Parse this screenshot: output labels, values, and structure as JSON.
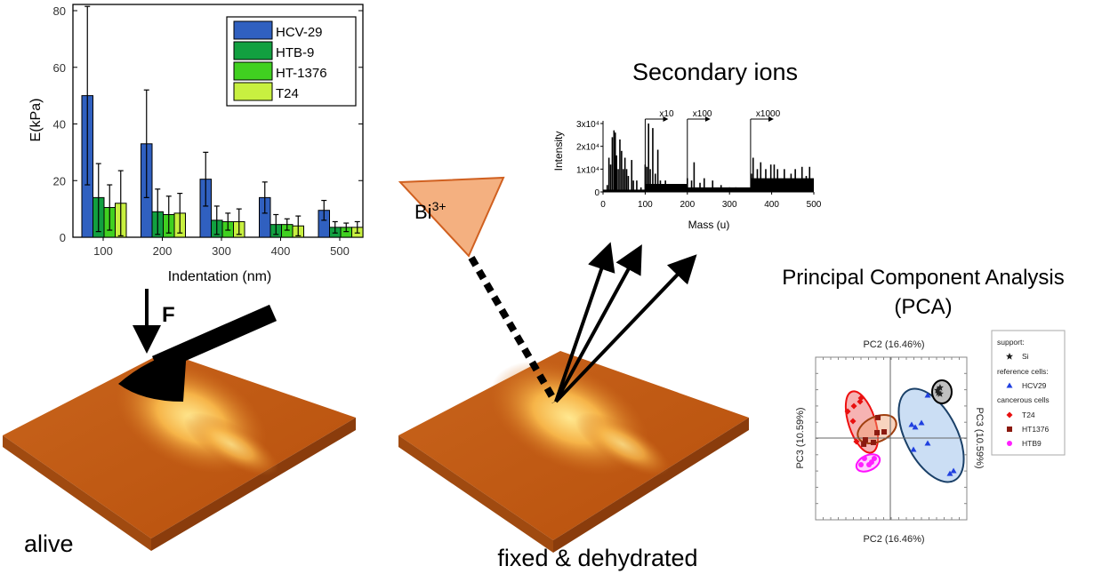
{
  "labels": {
    "secondary_ions": "Secondary ions",
    "pca_title_line1": "Principal Component Analysis",
    "pca_title_line2": "(PCA)",
    "alive": "alive",
    "fixed": "fixed & dehydrated",
    "force": "F",
    "bi": "Bi",
    "bi_charge": "3+"
  },
  "chart_data": [
    {
      "type": "bar",
      "xlabel": "Indentation (nm)",
      "ylabel": "E(kPa)",
      "ylim": [
        0,
        80
      ],
      "yticks": [
        "0",
        "20",
        "40",
        "60",
        "80"
      ],
      "categories": [
        "100",
        "200",
        "300",
        "400",
        "500"
      ],
      "legend_position": "top-right",
      "series": [
        {
          "name": "HCV-29",
          "color": "#3060c0",
          "values": [
            50,
            33,
            20.5,
            14,
            9.5
          ],
          "errors": [
            31.5,
            19,
            9.5,
            5.5,
            3.5
          ]
        },
        {
          "name": "HTB-9",
          "color": "#12a040",
          "values": [
            14,
            9,
            6,
            4.5,
            3.5
          ],
          "errors": [
            12,
            8,
            5,
            3.5,
            2
          ]
        },
        {
          "name": "HT-1376",
          "color": "#40d020",
          "values": [
            10.5,
            8,
            5.5,
            4.5,
            3.5
          ],
          "errors": [
            8,
            6.5,
            3,
            2,
            1.5
          ]
        },
        {
          "name": "T24",
          "color": "#c8f040",
          "values": [
            12,
            8.5,
            5.5,
            4,
            3.5
          ],
          "errors": [
            11.5,
            7,
            4.5,
            3.5,
            2
          ]
        }
      ]
    },
    {
      "type": "bar",
      "xlabel": "Mass (u)",
      "ylabel": "Intensity",
      "xlim": [
        0,
        500
      ],
      "ylim": [
        0,
        30000
      ],
      "xticks": [
        "0",
        "100",
        "200",
        "300",
        "400",
        "500"
      ],
      "yticks": [
        "0",
        "1x10⁴",
        "2x10⁴",
        "3x10⁴"
      ],
      "multipliers": [
        {
          "from": 100,
          "label": "x10"
        },
        {
          "from": 200,
          "label": "x100"
        },
        {
          "from": 350,
          "label": "x1000"
        }
      ],
      "baseline": [
        [
          0,
          100,
          1000
        ],
        [
          100,
          200,
          3500
        ],
        [
          200,
          350,
          2000
        ],
        [
          350,
          500,
          6000
        ]
      ],
      "peaks": [
        [
          10,
          3000
        ],
        [
          14,
          15000
        ],
        [
          18,
          12000
        ],
        [
          22,
          24000
        ],
        [
          26,
          27000
        ],
        [
          29,
          26000
        ],
        [
          32,
          16000
        ],
        [
          36,
          10000
        ],
        [
          40,
          23000
        ],
        [
          44,
          18000
        ],
        [
          48,
          10000
        ],
        [
          52,
          15000
        ],
        [
          56,
          10000
        ],
        [
          60,
          7000
        ],
        [
          68,
          14000
        ],
        [
          72,
          5000
        ],
        [
          80,
          5000
        ],
        [
          90,
          2000
        ],
        [
          100,
          12000
        ],
        [
          104,
          11000
        ],
        [
          108,
          30000
        ],
        [
          112,
          10000
        ],
        [
          118,
          28000
        ],
        [
          124,
          8000
        ],
        [
          130,
          18500
        ],
        [
          136,
          5000
        ],
        [
          148,
          5000
        ],
        [
          160,
          3000
        ],
        [
          170,
          2500
        ],
        [
          190,
          1000
        ],
        [
          200,
          6000
        ],
        [
          210,
          5000
        ],
        [
          216,
          13000
        ],
        [
          230,
          4000
        ],
        [
          240,
          6000
        ],
        [
          260,
          5000
        ],
        [
          280,
          3000
        ],
        [
          300,
          2000
        ],
        [
          315,
          2000
        ],
        [
          340,
          1000
        ],
        [
          352,
          8000
        ],
        [
          356,
          15000
        ],
        [
          366,
          10000
        ],
        [
          374,
          13000
        ],
        [
          386,
          10000
        ],
        [
          398,
          12000
        ],
        [
          406,
          12000
        ],
        [
          414,
          10000
        ],
        [
          430,
          10000
        ],
        [
          446,
          8000
        ],
        [
          456,
          10000
        ],
        [
          472,
          11000
        ],
        [
          482,
          7000
        ],
        [
          490,
          11000
        ],
        [
          498,
          5000
        ]
      ]
    },
    {
      "type": "scatter",
      "xlabel": "PC2 (16.46%)",
      "ylabel": "PC3 (10.59%)",
      "xlim": [
        -5,
        5
      ],
      "ylim": [
        -5,
        5
      ],
      "legend_position": "right",
      "legend_headers": {
        "support": "support:",
        "reference": "reference cells:",
        "cancerous": "cancerous cells"
      },
      "series": [
        {
          "name": "Si",
          "group": "support",
          "marker": "star",
          "color": "#222222",
          "points": [
            [
              3.29,
              3.11
            ],
            [
              3.18,
              2.79
            ],
            [
              3.29,
              2.73
            ],
            [
              3.12,
              2.95
            ]
          ]
        },
        {
          "name": "HCV29",
          "group": "reference",
          "marker": "triangle",
          "color": "#2040e0",
          "points": [
            [
              2.47,
              2.62
            ],
            [
              1.41,
              0.82
            ],
            [
              1.65,
              0.66
            ],
            [
              2.06,
              0.93
            ],
            [
              2.47,
              -0.33
            ],
            [
              1.53,
              -0.71
            ],
            [
              3.94,
              -2.19
            ],
            [
              4.18,
              -2.02
            ]
          ]
        },
        {
          "name": "T24",
          "group": "cancerous",
          "marker": "diamond",
          "color": "#e81010",
          "points": [
            [
              -1.94,
              2.46
            ],
            [
              -2.41,
              1.97
            ],
            [
              -2.82,
              1.64
            ],
            [
              -2.47,
              1.04
            ],
            [
              -2.0,
              2.24
            ],
            [
              -2.24,
              -0.22
            ]
          ]
        },
        {
          "name": "HT1376",
          "group": "cancerous",
          "marker": "square",
          "color": "#8b1a10",
          "points": [
            [
              -0.82,
              1.26
            ],
            [
              -0.88,
              0.33
            ],
            [
              -0.41,
              0.38
            ],
            [
              -1.65,
              -0.11
            ],
            [
              -1.12,
              -0.27
            ],
            [
              -1.76,
              -0.38
            ]
          ]
        },
        {
          "name": "HTB9",
          "group": "cancerous",
          "marker": "circle",
          "color": "#ff20ff",
          "points": [
            [
              -1.71,
              -1.26
            ],
            [
              -1.94,
              -1.64
            ],
            [
              -1.41,
              -1.64
            ],
            [
              -1.06,
              -1.26
            ],
            [
              -1.24,
              -1.48
            ]
          ]
        }
      ]
    }
  ]
}
